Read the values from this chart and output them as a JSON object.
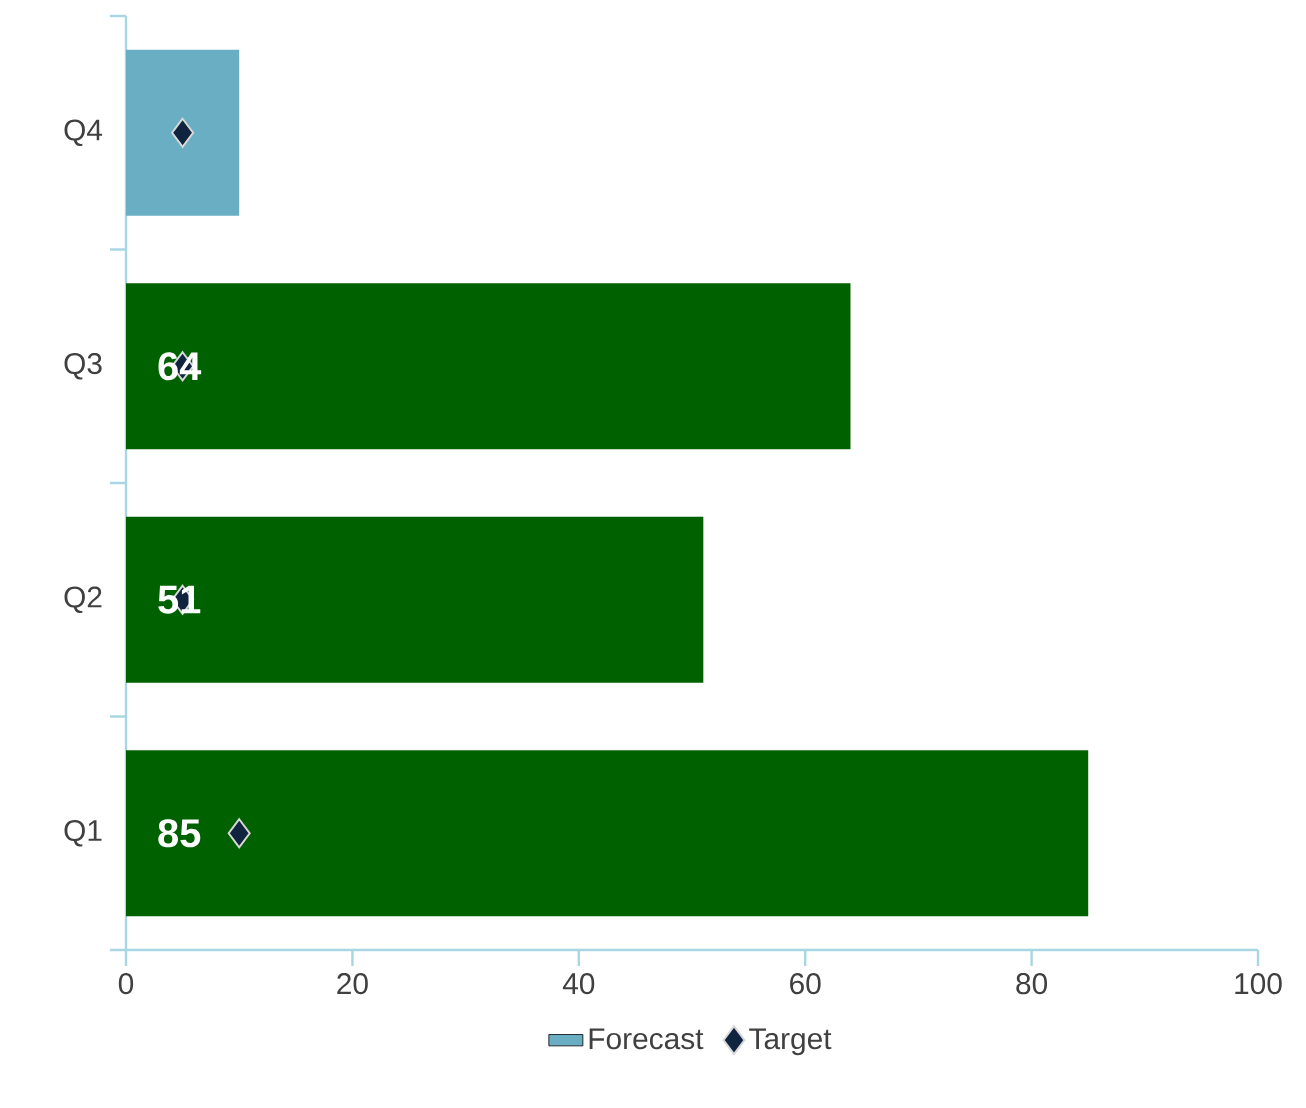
{
  "chart_data": {
    "type": "bar",
    "orientation": "horizontal",
    "categories": [
      "Q4",
      "Q3",
      "Q2",
      "Q1"
    ],
    "xlim": [
      0,
      100
    ],
    "xticks": [
      0,
      20,
      40,
      60,
      80,
      100
    ],
    "legend": "bottom",
    "series": [
      {
        "color": "#006100",
        "values": [
          null,
          64,
          51,
          85
        ],
        "value_labels": [
          null,
          "64",
          "51",
          "85"
        ]
      },
      {
        "name": "Forecast",
        "color": "#6aaec4",
        "values": [
          10,
          null,
          null,
          null
        ]
      },
      {
        "name": "Target",
        "type": "scatter",
        "color": "#10233f",
        "marker": "diamond",
        "values": [
          5,
          5,
          5,
          10
        ]
      }
    ]
  }
}
